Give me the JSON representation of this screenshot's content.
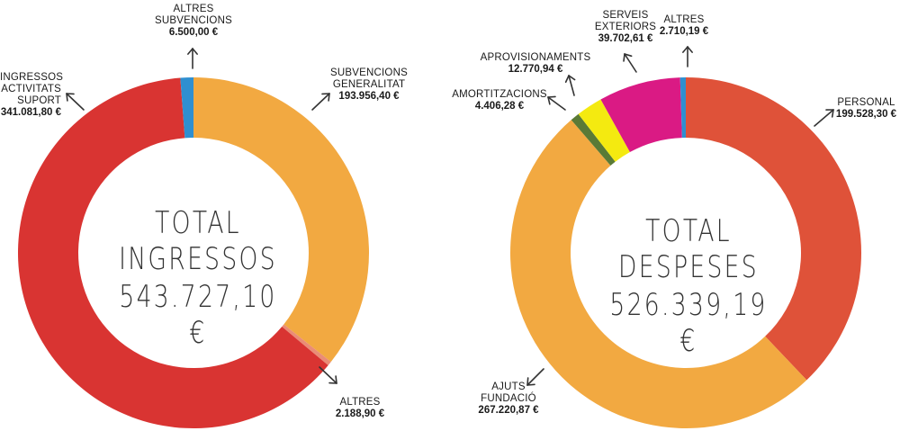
{
  "chart_data": [
    {
      "type": "pie",
      "title": "TOTAL INGRESSOS",
      "total": "543.727,10 €",
      "slices": [
        {
          "label": "SUBVENCIONS GENERALITAT",
          "label_lines": [
            "SUBVENCIONS",
            "GENERALITAT"
          ],
          "value": 193956.4,
          "value_text": "193.956,40 €",
          "color": "#F2A941"
        },
        {
          "label": "ALTRES",
          "label_lines": [
            "ALTRES"
          ],
          "value": 2188.9,
          "value_text": "2.188,90 €",
          "color": "#EA8C76"
        },
        {
          "label": "INGRESSOS ACTIVITATS SUPORT",
          "label_lines": [
            "INGRESSOS",
            "ACTIVITATS",
            "SUPORT"
          ],
          "value": 341081.8,
          "value_text": "341.081,80 €",
          "color": "#D93432"
        },
        {
          "label": "ALTRES SUBVENCIONS",
          "label_lines": [
            "ALTRES",
            "SUBVENCIONS"
          ],
          "value": 6500.0,
          "value_text": "6.500,00 €",
          "color": "#2F8FD0"
        }
      ]
    },
    {
      "type": "pie",
      "title": "TOTAL DESPESES",
      "total": "526.339,19 €",
      "slices": [
        {
          "label": "PERSONAL",
          "label_lines": [
            "PERSONAL"
          ],
          "value": 199528.3,
          "value_text": "199.528,30 €",
          "color": "#DF5239"
        },
        {
          "label": "AJUTS FUNDACIÓ",
          "label_lines": [
            "AJUTS",
            "FUNDACIÓ"
          ],
          "value": 267220.87,
          "value_text": "267.220,87 €",
          "color": "#F2A941"
        },
        {
          "label": "AMORTITZACIONS",
          "label_lines": [
            "AMORTITZACIONS"
          ],
          "value": 4406.28,
          "value_text": "4.406,28 €",
          "color": "#5A7A36"
        },
        {
          "label": "APROVISIONAMENTS",
          "label_lines": [
            "APROVISIONAMENTS"
          ],
          "value": 12770.94,
          "value_text": "12.770,94 €",
          "color": "#F4EA10"
        },
        {
          "label": "SERVEIS EXTERIORS",
          "label_lines": [
            "SERVEIS",
            "EXTERIORS"
          ],
          "value": 39702.61,
          "value_text": "39.702,61 €",
          "color": "#DA1A84"
        },
        {
          "label": "ALTRES",
          "label_lines": [
            "ALTRES"
          ],
          "value": 2710.19,
          "value_text": "2.710,19 €",
          "color": "#2F8FD0"
        }
      ]
    }
  ]
}
